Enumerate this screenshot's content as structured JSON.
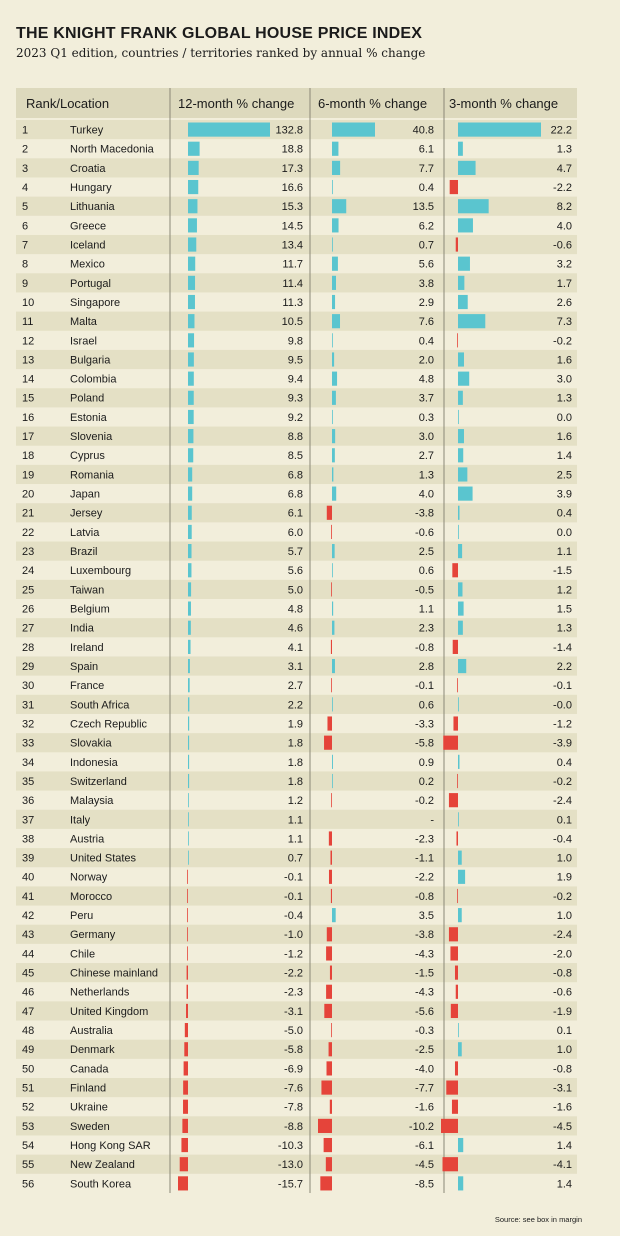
{
  "chart_data": {
    "type": "table",
    "title": "THE KNIGHT FRANK GLOBAL HOUSE PRICE INDEX",
    "subtitle": "2023 Q1 edition, countries / territories ranked by annual % change",
    "columns": [
      "Rank/Location",
      "12-month % change",
      "6-month % change",
      "3-month % change"
    ],
    "colors": {
      "positive": "#5ac5cf",
      "negative": "#e5443a",
      "band": "#e4e0c5",
      "header": "#ddd9bd",
      "divider": "#8a8877"
    },
    "rows": [
      {
        "rank": "1",
        "location": "Turkey",
        "m12": "132.8",
        "m6": "40.8",
        "m3": "22.2"
      },
      {
        "rank": "2",
        "location": "North Macedonia",
        "m12": "18.8",
        "m6": "6.1",
        "m3": "1.3"
      },
      {
        "rank": "3",
        "location": "Croatia",
        "m12": "17.3",
        "m6": "7.7",
        "m3": "4.7"
      },
      {
        "rank": "4",
        "location": "Hungary",
        "m12": "16.6",
        "m6": "0.4",
        "m3": "-2.2"
      },
      {
        "rank": "5",
        "location": "Lithuania",
        "m12": "15.3",
        "m6": "13.5",
        "m3": "8.2"
      },
      {
        "rank": "6",
        "location": "Greece",
        "m12": "14.5",
        "m6": "6.2",
        "m3": "4.0"
      },
      {
        "rank": "7",
        "location": "Iceland",
        "m12": "13.4",
        "m6": "0.7",
        "m3": "-0.6"
      },
      {
        "rank": "8",
        "location": "Mexico",
        "m12": "11.7",
        "m6": "5.6",
        "m3": "3.2"
      },
      {
        "rank": "9",
        "location": "Portugal",
        "m12": "11.4",
        "m6": "3.8",
        "m3": "1.7"
      },
      {
        "rank": "10",
        "location": "Singapore",
        "m12": "11.3",
        "m6": "2.9",
        "m3": "2.6"
      },
      {
        "rank": "11",
        "location": "Malta",
        "m12": "10.5",
        "m6": "7.6",
        "m3": "7.3"
      },
      {
        "rank": "12",
        "location": "Israel",
        "m12": "9.8",
        "m6": "0.4",
        "m3": "-0.2"
      },
      {
        "rank": "13",
        "location": "Bulgaria",
        "m12": "9.5",
        "m6": "2.0",
        "m3": "1.6"
      },
      {
        "rank": "14",
        "location": "Colombia",
        "m12": "9.4",
        "m6": "4.8",
        "m3": "3.0"
      },
      {
        "rank": "15",
        "location": "Poland",
        "m12": "9.3",
        "m6": "3.7",
        "m3": "1.3"
      },
      {
        "rank": "16",
        "location": "Estonia",
        "m12": "9.2",
        "m6": "0.3",
        "m3": "0.0"
      },
      {
        "rank": "17",
        "location": "Slovenia",
        "m12": "8.8",
        "m6": "3.0",
        "m3": "1.6"
      },
      {
        "rank": "18",
        "location": "Cyprus",
        "m12": "8.5",
        "m6": "2.7",
        "m3": "1.4"
      },
      {
        "rank": "19",
        "location": "Romania",
        "m12": "6.8",
        "m6": "1.3",
        "m3": "2.5"
      },
      {
        "rank": "20",
        "location": "Japan",
        "m12": "6.8",
        "m6": "4.0",
        "m3": "3.9"
      },
      {
        "rank": "21",
        "location": "Jersey",
        "m12": "6.1",
        "m6": "-3.8",
        "m3": "0.4"
      },
      {
        "rank": "22",
        "location": "Latvia",
        "m12": "6.0",
        "m6": "-0.6",
        "m3": "0.0"
      },
      {
        "rank": "23",
        "location": "Brazil",
        "m12": "5.7",
        "m6": "2.5",
        "m3": "1.1"
      },
      {
        "rank": "24",
        "location": "Luxembourg",
        "m12": "5.6",
        "m6": "0.6",
        "m3": "-1.5"
      },
      {
        "rank": "25",
        "location": "Taiwan",
        "m12": "5.0",
        "m6": "-0.5",
        "m3": "1.2"
      },
      {
        "rank": "26",
        "location": "Belgium",
        "m12": "4.8",
        "m6": "1.1",
        "m3": "1.5"
      },
      {
        "rank": "27",
        "location": "India",
        "m12": "4.6",
        "m6": "2.3",
        "m3": "1.3"
      },
      {
        "rank": "28",
        "location": "Ireland",
        "m12": "4.1",
        "m6": "-0.8",
        "m3": "-1.4"
      },
      {
        "rank": "29",
        "location": "Spain",
        "m12": "3.1",
        "m6": "2.8",
        "m3": "2.2"
      },
      {
        "rank": "30",
        "location": "France",
        "m12": "2.7",
        "m6": "-0.1",
        "m3": "-0.1"
      },
      {
        "rank": "31",
        "location": "South Africa",
        "m12": "2.2",
        "m6": "0.6",
        "m3": "-0.0"
      },
      {
        "rank": "32",
        "location": "Czech Republic",
        "m12": "1.9",
        "m6": "-3.3",
        "m3": "-1.2"
      },
      {
        "rank": "33",
        "location": "Slovakia",
        "m12": "1.8",
        "m6": "-5.8",
        "m3": "-3.9"
      },
      {
        "rank": "34",
        "location": "Indonesia",
        "m12": "1.8",
        "m6": "0.9",
        "m3": "0.4"
      },
      {
        "rank": "35",
        "location": "Switzerland",
        "m12": "1.8",
        "m6": "0.2",
        "m3": "-0.2"
      },
      {
        "rank": "36",
        "location": "Malaysia",
        "m12": "1.2",
        "m6": "-0.2",
        "m3": "-2.4"
      },
      {
        "rank": "37",
        "location": "Italy",
        "m12": "1.1",
        "m6": "-",
        "m3": "0.1"
      },
      {
        "rank": "38",
        "location": "Austria",
        "m12": "1.1",
        "m6": "-2.3",
        "m3": "-0.4"
      },
      {
        "rank": "39",
        "location": "United States",
        "m12": "0.7",
        "m6": "-1.1",
        "m3": "1.0"
      },
      {
        "rank": "40",
        "location": "Norway",
        "m12": "-0.1",
        "m6": "-2.2",
        "m3": "1.9"
      },
      {
        "rank": "41",
        "location": "Morocco",
        "m12": "-0.1",
        "m6": "-0.8",
        "m3": "-0.2"
      },
      {
        "rank": "42",
        "location": "Peru",
        "m12": "-0.4",
        "m6": "3.5",
        "m3": "1.0"
      },
      {
        "rank": "43",
        "location": "Germany",
        "m12": "-1.0",
        "m6": "-3.8",
        "m3": "-2.4"
      },
      {
        "rank": "44",
        "location": "Chile",
        "m12": "-1.2",
        "m6": "-4.3",
        "m3": "-2.0"
      },
      {
        "rank": "45",
        "location": "Chinese mainland",
        "m12": "-2.2",
        "m6": "-1.5",
        "m3": "-0.8"
      },
      {
        "rank": "46",
        "location": "Netherlands",
        "m12": "-2.3",
        "m6": "-4.3",
        "m3": "-0.6"
      },
      {
        "rank": "47",
        "location": "United Kingdom",
        "m12": "-3.1",
        "m6": "-5.6",
        "m3": "-1.9"
      },
      {
        "rank": "48",
        "location": "Australia",
        "m12": "-5.0",
        "m6": "-0.3",
        "m3": "0.1"
      },
      {
        "rank": "49",
        "location": "Denmark",
        "m12": "-5.8",
        "m6": "-2.5",
        "m3": "1.0"
      },
      {
        "rank": "50",
        "location": "Canada",
        "m12": "-6.9",
        "m6": "-4.0",
        "m3": "-0.8"
      },
      {
        "rank": "51",
        "location": "Finland",
        "m12": "-7.6",
        "m6": "-7.7",
        "m3": "-3.1"
      },
      {
        "rank": "52",
        "location": "Ukraine",
        "m12": "-7.8",
        "m6": "-1.6",
        "m3": "-1.6"
      },
      {
        "rank": "53",
        "location": "Sweden",
        "m12": "-8.8",
        "m6": "-10.2",
        "m3": "-4.5"
      },
      {
        "rank": "54",
        "location": "Hong Kong SAR",
        "m12": "-10.3",
        "m6": "-6.1",
        "m3": "1.4"
      },
      {
        "rank": "55",
        "location": "New Zealand",
        "m12": "-13.0",
        "m6": "-4.5",
        "m3": "-4.1"
      },
      {
        "rank": "56",
        "location": "South Korea",
        "m12": "-15.7",
        "m6": "-8.5",
        "m3": "1.4"
      }
    ],
    "source": "Source: see box in margin"
  }
}
